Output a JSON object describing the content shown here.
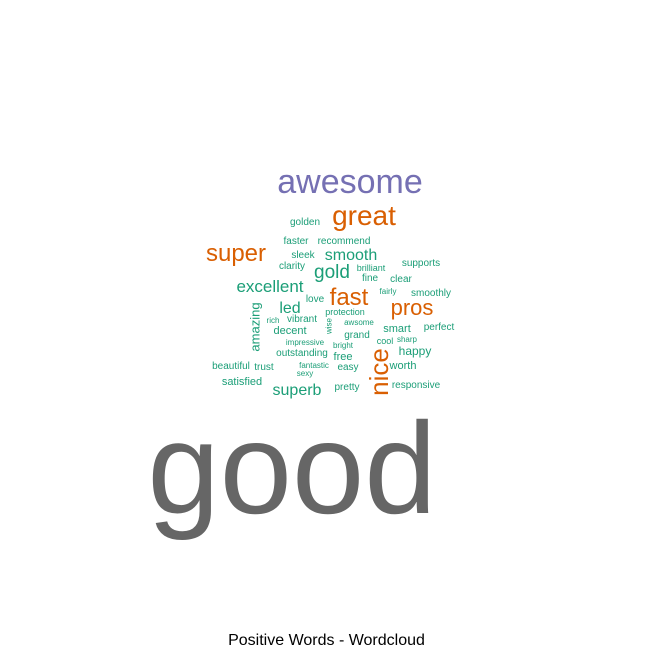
{
  "chart_data": {
    "type": "wordcloud",
    "title": "Positive Words - Wordcloud",
    "colors": {
      "tier1": "#666666",
      "tier2": "#7570b3",
      "tier3": "#d95f02",
      "tier4": "#1b9e77"
    },
    "words": [
      {
        "text": "good",
        "tier": "tier1"
      },
      {
        "text": "awesome",
        "tier": "tier2"
      },
      {
        "text": "great",
        "tier": "tier3"
      },
      {
        "text": "super",
        "tier": "tier3"
      },
      {
        "text": "fast",
        "tier": "tier3"
      },
      {
        "text": "pros",
        "tier": "tier3"
      },
      {
        "text": "nice",
        "tier": "tier3",
        "vertical": true
      },
      {
        "text": "gold",
        "tier": "tier4"
      },
      {
        "text": "smooth",
        "tier": "tier4"
      },
      {
        "text": "excellent",
        "tier": "tier4"
      },
      {
        "text": "superb",
        "tier": "tier4"
      },
      {
        "text": "led",
        "tier": "tier4"
      },
      {
        "text": "amazing",
        "tier": "tier4",
        "vertical": true
      },
      {
        "text": "golden",
        "tier": "tier4"
      },
      {
        "text": "faster",
        "tier": "tier4"
      },
      {
        "text": "recommend",
        "tier": "tier4"
      },
      {
        "text": "sleek",
        "tier": "tier4"
      },
      {
        "text": "clarity",
        "tier": "tier4"
      },
      {
        "text": "brilliant",
        "tier": "tier4"
      },
      {
        "text": "supports",
        "tier": "tier4"
      },
      {
        "text": "fine",
        "tier": "tier4"
      },
      {
        "text": "clear",
        "tier": "tier4"
      },
      {
        "text": "fairly",
        "tier": "tier4"
      },
      {
        "text": "smoothly",
        "tier": "tier4"
      },
      {
        "text": "love",
        "tier": "tier4"
      },
      {
        "text": "protection",
        "tier": "tier4"
      },
      {
        "text": "rich",
        "tier": "tier4"
      },
      {
        "text": "vibrant",
        "tier": "tier4"
      },
      {
        "text": "wise",
        "tier": "tier4",
        "vertical": true
      },
      {
        "text": "awsome",
        "tier": "tier4"
      },
      {
        "text": "smart",
        "tier": "tier4"
      },
      {
        "text": "perfect",
        "tier": "tier4"
      },
      {
        "text": "decent",
        "tier": "tier4"
      },
      {
        "text": "grand",
        "tier": "tier4"
      },
      {
        "text": "cool",
        "tier": "tier4"
      },
      {
        "text": "sharp",
        "tier": "tier4"
      },
      {
        "text": "impressive",
        "tier": "tier4"
      },
      {
        "text": "bright",
        "tier": "tier4"
      },
      {
        "text": "happy",
        "tier": "tier4"
      },
      {
        "text": "outstanding",
        "tier": "tier4"
      },
      {
        "text": "free",
        "tier": "tier4"
      },
      {
        "text": "beautiful",
        "tier": "tier4"
      },
      {
        "text": "trust",
        "tier": "tier4"
      },
      {
        "text": "fantastic",
        "tier": "tier4"
      },
      {
        "text": "easy",
        "tier": "tier4"
      },
      {
        "text": "worth",
        "tier": "tier4"
      },
      {
        "text": "sexy",
        "tier": "tier4"
      },
      {
        "text": "satisfied",
        "tier": "tier4"
      },
      {
        "text": "pretty",
        "tier": "tier4"
      },
      {
        "text": "responsive",
        "tier": "tier4"
      }
    ]
  }
}
